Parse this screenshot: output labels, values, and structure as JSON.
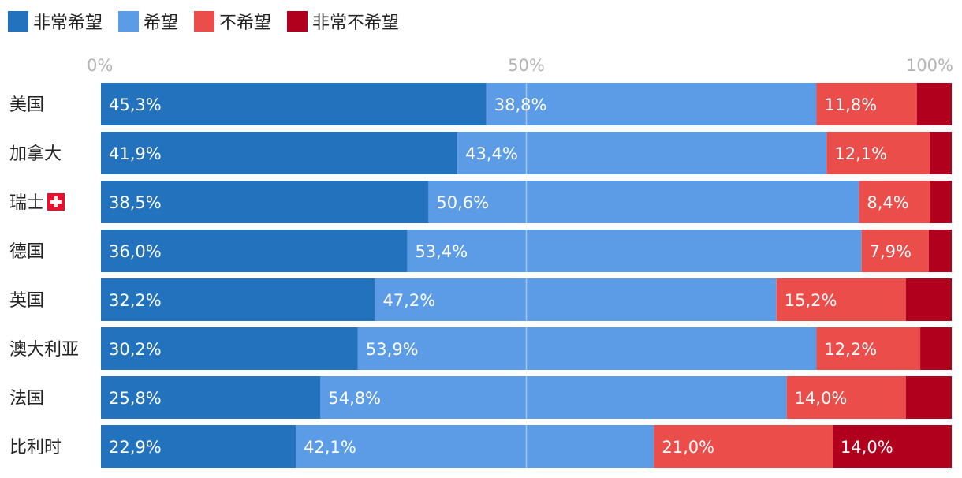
{
  "chart_data": {
    "type": "bar",
    "orientation": "horizontal",
    "stacked": true,
    "percent": true,
    "xlim": [
      0,
      100
    ],
    "x_ticks": [
      0,
      50,
      100
    ],
    "x_tick_labels": [
      "0%",
      "50%",
      "100%"
    ],
    "grid": true,
    "legend_position": "top-left",
    "categories": [
      "美国",
      "加拿大",
      "瑞士",
      "德国",
      "英国",
      "澳大利亚",
      "法国",
      "比利时"
    ],
    "category_icons": [
      null,
      null,
      "swiss-flag-icon",
      null,
      null,
      null,
      null,
      null
    ],
    "series": [
      {
        "name": "非常希望",
        "color": "#2272BE",
        "values": [
          45.3,
          41.9,
          38.5,
          36.0,
          32.2,
          30.2,
          25.8,
          22.9
        ],
        "labels": [
          "45,3%",
          "41,9%",
          "38,5%",
          "36,0%",
          "32,2%",
          "30,2%",
          "25,8%",
          "22,9%"
        ]
      },
      {
        "name": "希望",
        "color": "#5C9CE6",
        "values": [
          38.8,
          43.4,
          50.6,
          53.4,
          47.2,
          53.9,
          54.8,
          42.1
        ],
        "labels": [
          "38,8%",
          "43,4%",
          "50,6%",
          "53,4%",
          "47,2%",
          "53,9%",
          "54,8%",
          "42,1%"
        ]
      },
      {
        "name": "不希望",
        "color": "#EB4D4B",
        "values": [
          11.8,
          12.1,
          8.4,
          7.9,
          15.2,
          12.2,
          14.0,
          21.0
        ],
        "labels": [
          "11,8%",
          "12,1%",
          "8,4%",
          "7,9%",
          "15,2%",
          "12,2%",
          "14,0%",
          "21,0%"
        ]
      },
      {
        "name": "非常不希望",
        "color": "#B0001E",
        "values": [
          4.1,
          2.6,
          2.5,
          2.7,
          5.4,
          3.7,
          5.4,
          14.0
        ],
        "labels": [
          "",
          "",
          "",
          "",
          "",
          "",
          "",
          "14,0%"
        ]
      }
    ]
  }
}
